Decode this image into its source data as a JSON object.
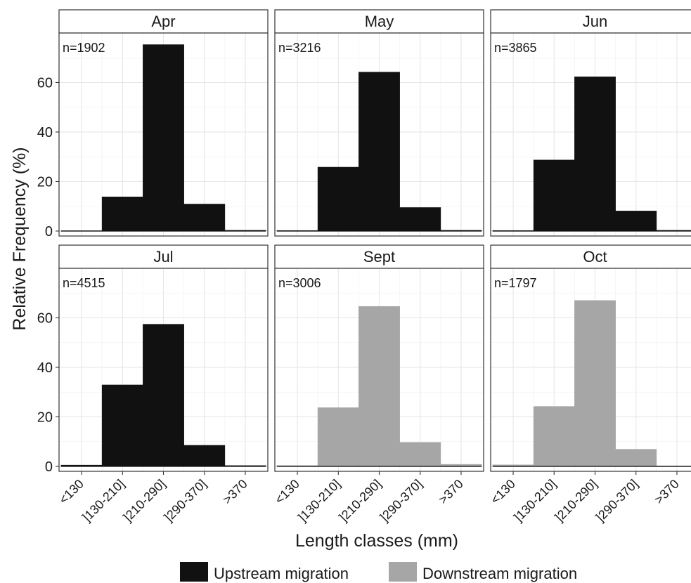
{
  "chart_data": {
    "type": "bar",
    "xlabel": "Length classes (mm)",
    "ylabel": "Relative Frequency (%)",
    "categories": [
      "<130",
      "]130-210]",
      "]210-290]",
      "]290-370]",
      ">370"
    ],
    "yticks": [
      0,
      20,
      40,
      60
    ],
    "ylim": [
      -2,
      80
    ],
    "grid": true,
    "legend_position": "bottom",
    "legend": [
      {
        "name": "Upstream migration",
        "color": "#111111"
      },
      {
        "name": "Downstream migration",
        "color": "#a6a6a6"
      }
    ],
    "panels": [
      {
        "title": "Apr",
        "n_label": "n=1902",
        "group": "Upstream migration",
        "values": [
          0.1,
          13.8,
          75.3,
          10.9,
          0.3
        ]
      },
      {
        "title": "May",
        "n_label": "n=3216",
        "group": "Upstream migration",
        "values": [
          0.2,
          25.8,
          64.2,
          9.5,
          0.3
        ]
      },
      {
        "title": "Jun",
        "n_label": "n=3865",
        "group": "Upstream migration",
        "values": [
          0.2,
          28.7,
          62.3,
          8.1,
          0.3
        ]
      },
      {
        "title": "Jul",
        "n_label": "n=4515",
        "group": "Upstream migration",
        "values": [
          0.5,
          32.9,
          57.4,
          8.5,
          0.3
        ]
      },
      {
        "title": "Sept",
        "n_label": "n=3006",
        "group": "Downstream migration",
        "values": [
          0.3,
          23.7,
          64.6,
          9.7,
          0.8
        ]
      },
      {
        "title": "Oct",
        "n_label": "n=1797",
        "group": "Downstream migration",
        "values": [
          0.6,
          24.2,
          67.0,
          6.9,
          0.2
        ]
      }
    ]
  }
}
